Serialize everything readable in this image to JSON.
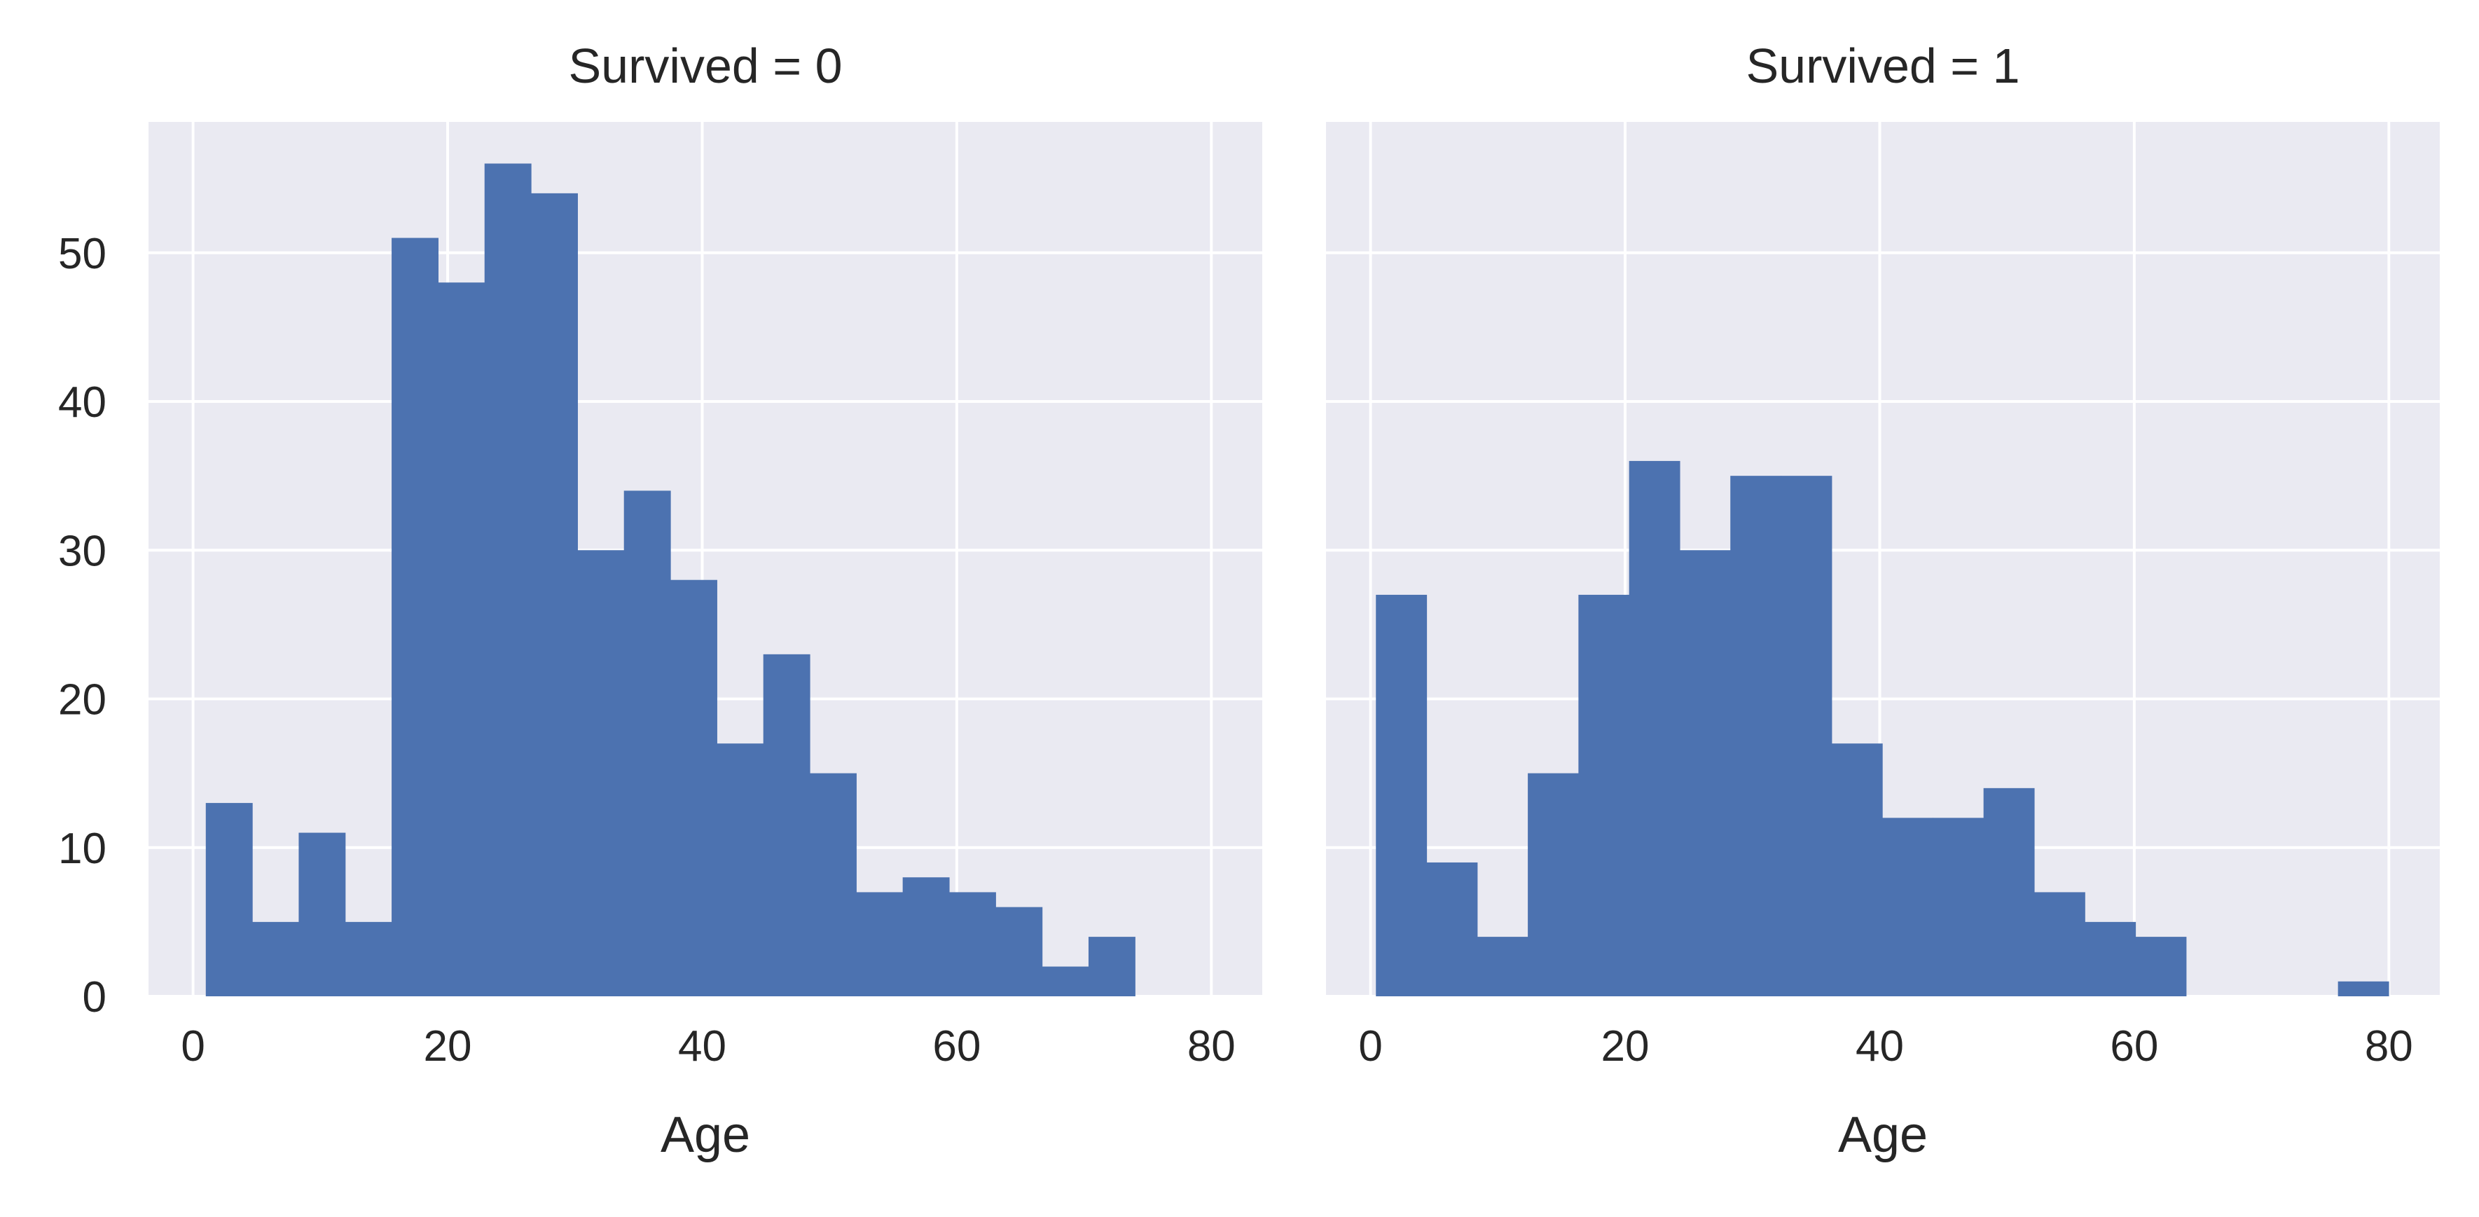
{
  "chart_data": [
    {
      "type": "bar",
      "histogram": true,
      "title": "Survived = 0",
      "xlabel": "Age",
      "ylabel": "",
      "xlim": [
        -3.5,
        84
      ],
      "ylim": [
        0,
        58.8
      ],
      "xticks": [
        0,
        20,
        40,
        60,
        80
      ],
      "yticks": [
        0,
        10,
        20,
        30,
        40,
        50
      ],
      "grid": true,
      "bin_edges": [
        1,
        4.65,
        8.3,
        11.95,
        15.6,
        19.25,
        22.9,
        26.55,
        30.2,
        33.85,
        37.5,
        41.15,
        44.8,
        48.45,
        52.1,
        55.75,
        59.4,
        63.05,
        66.7,
        70.35,
        74
      ],
      "values": [
        13,
        5,
        11,
        5,
        51,
        48,
        56,
        54,
        30,
        34,
        28,
        17,
        23,
        15,
        7,
        8,
        7,
        6,
        2,
        4
      ],
      "color": "#4c72b0"
    },
    {
      "type": "bar",
      "histogram": true,
      "title": "Survived = 1",
      "xlabel": "Age",
      "ylabel": "",
      "xlim": [
        -3.5,
        84
      ],
      "ylim": [
        0,
        58.8
      ],
      "xticks": [
        0,
        20,
        40,
        60,
        80
      ],
      "yticks": [
        0,
        10,
        20,
        30,
        40,
        50
      ],
      "grid": true,
      "bin_edges": [
        0.42,
        4.398,
        8.376,
        12.354,
        16.332,
        20.31,
        24.288,
        28.266,
        32.244,
        36.222,
        40.2,
        44.178,
        48.156,
        52.134,
        56.112,
        60.09,
        64.068,
        68.046,
        72.024,
        76.002,
        79.98
      ],
      "values": [
        27,
        9,
        4,
        15,
        27,
        36,
        30,
        35,
        35,
        17,
        12,
        12,
        14,
        7,
        5,
        4,
        0,
        0,
        0,
        1
      ],
      "color": "#4c72b0"
    }
  ],
  "style": {
    "background": "#eaeaf2",
    "grid_color": "#ffffff",
    "bar_color": "#4c72b0",
    "text_color": "#262626"
  }
}
